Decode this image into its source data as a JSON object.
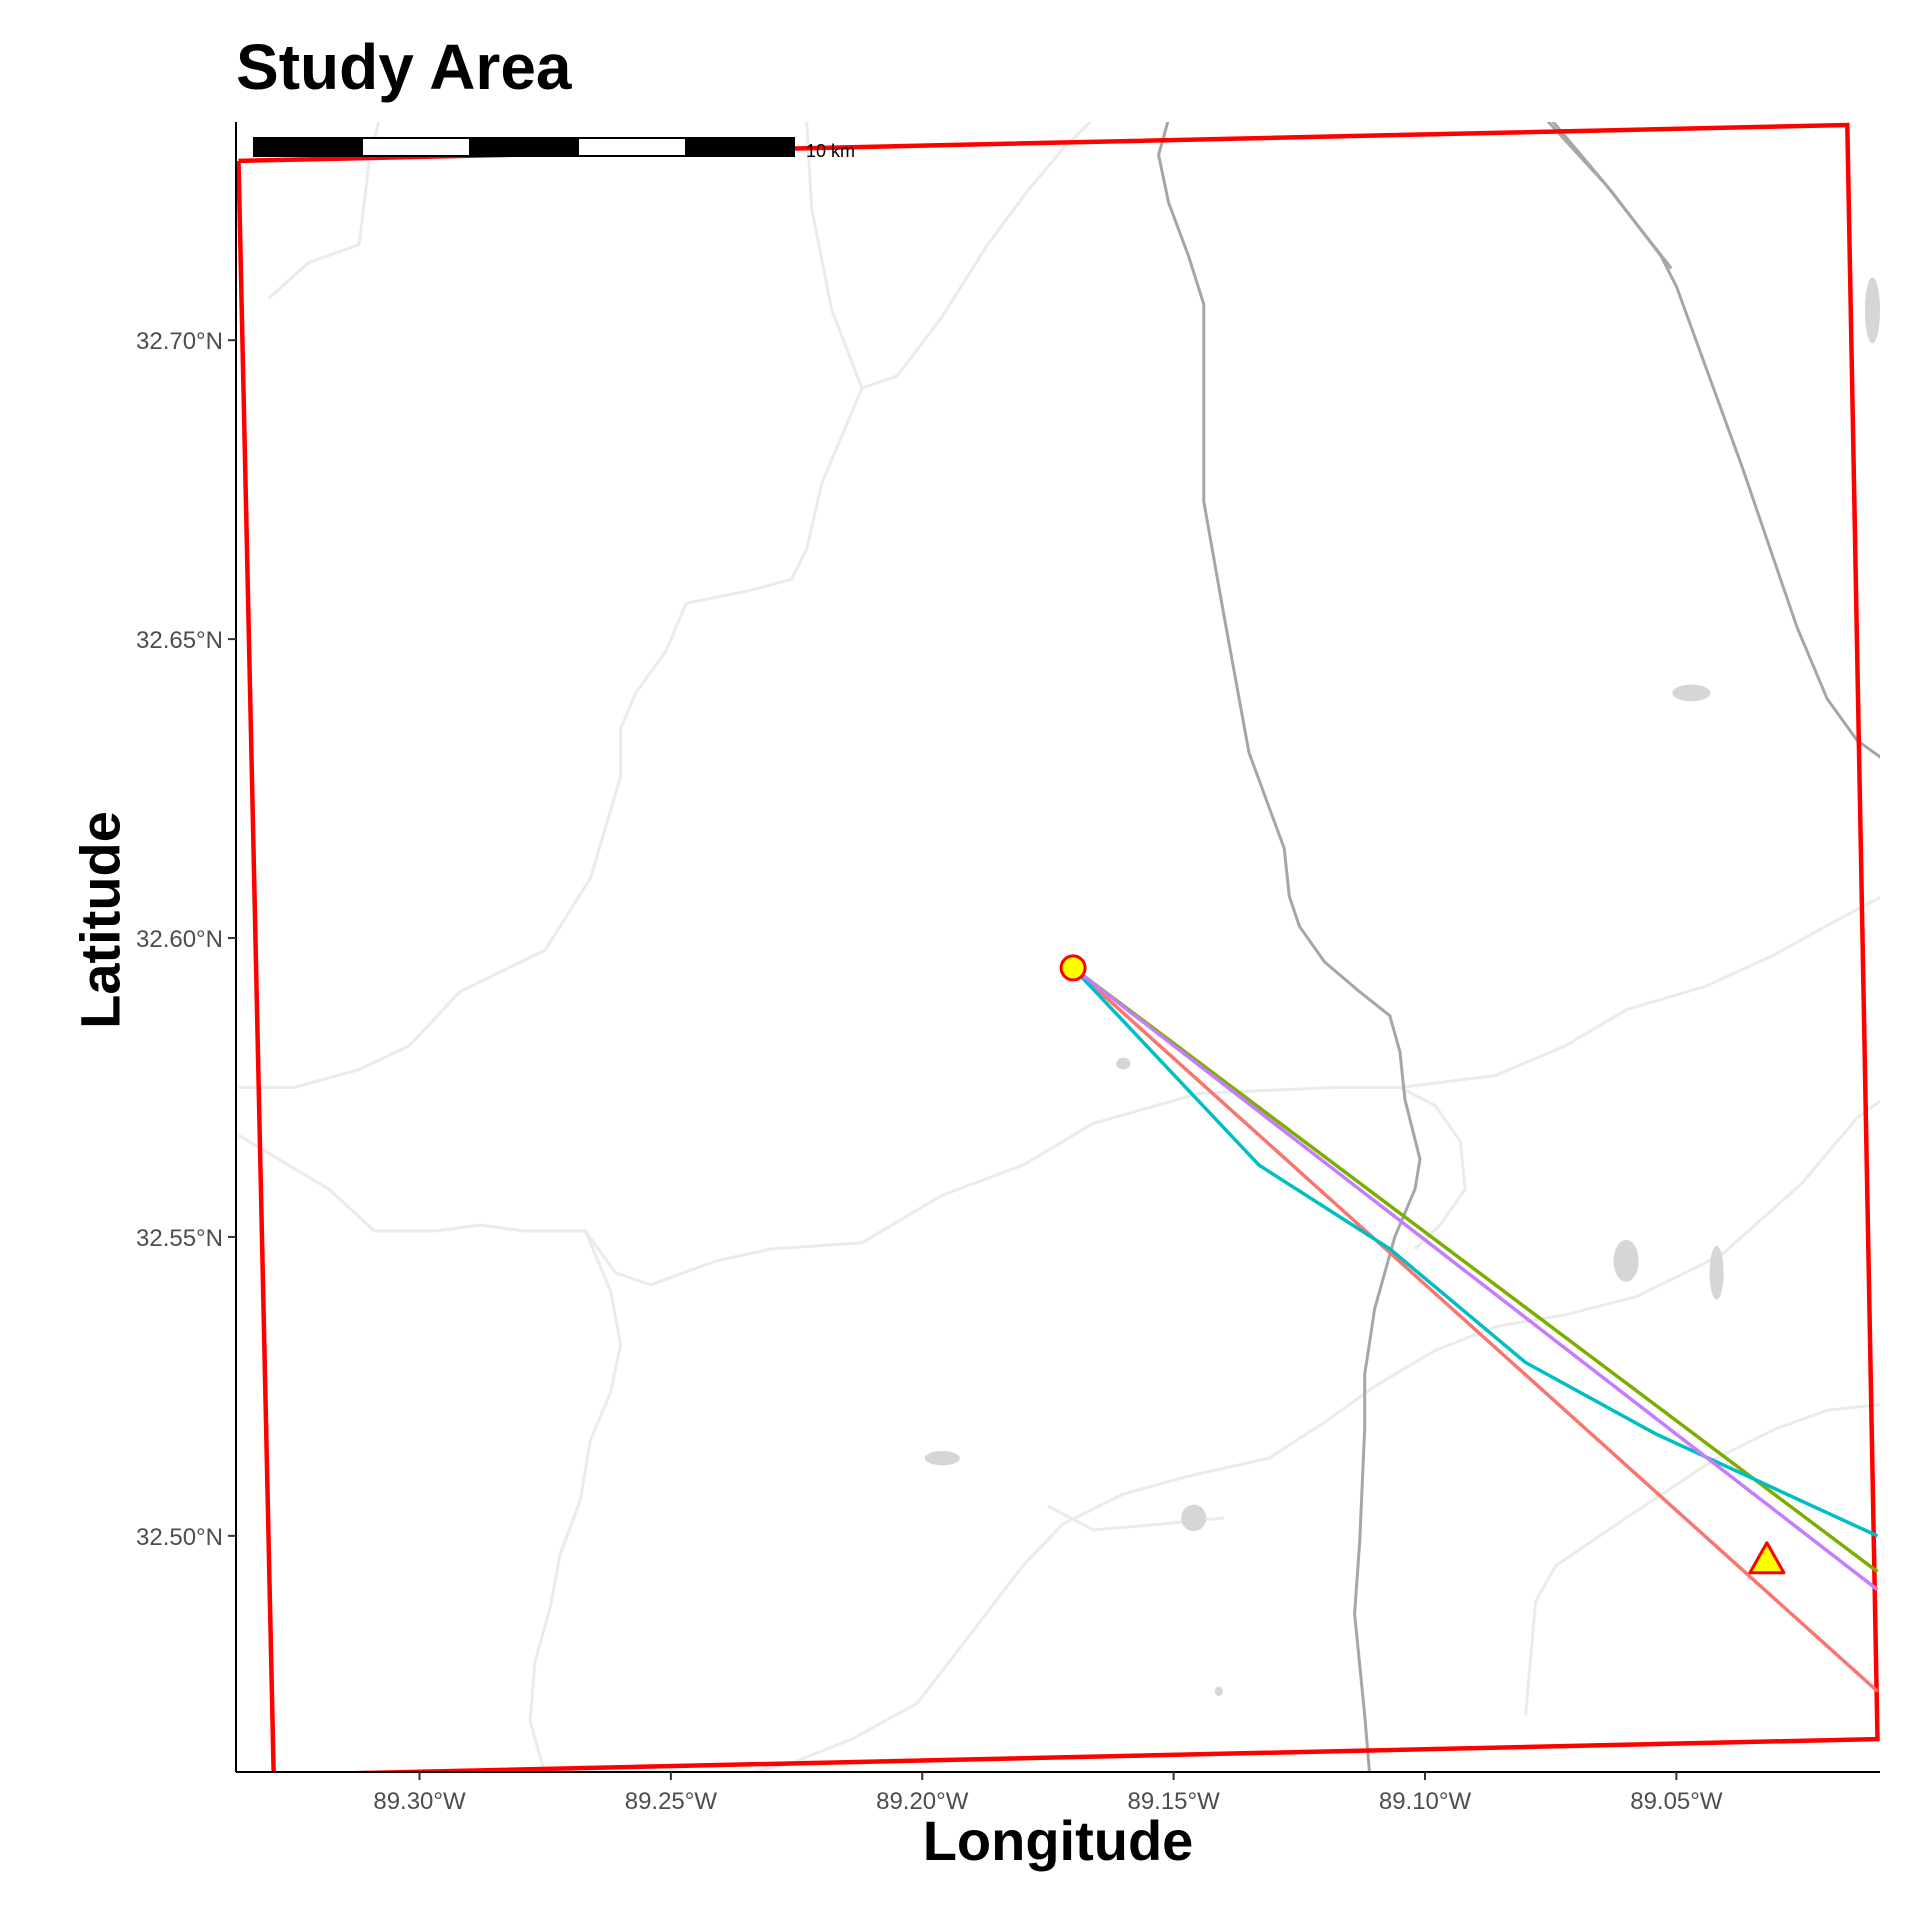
{
  "title": "Study Area",
  "map": {
    "xlabel": "Longitude",
    "ylabel": "Latitude",
    "lon_range": [
      -89.3365,
      -89.0095
    ],
    "lat_range": [
      32.4605,
      32.7365
    ],
    "x_ticks": [
      {
        "value": -89.3,
        "label": "89.30°W"
      },
      {
        "value": -89.25,
        "label": "89.25°W"
      },
      {
        "value": -89.2,
        "label": "89.20°W"
      },
      {
        "value": -89.15,
        "label": "89.15°W"
      },
      {
        "value": -89.1,
        "label": "89.10°W"
      },
      {
        "value": -89.05,
        "label": "89.05°W"
      }
    ],
    "y_ticks": [
      {
        "value": 32.5,
        "label": "32.50°N"
      },
      {
        "value": 32.55,
        "label": "32.55°N"
      },
      {
        "value": 32.6,
        "label": "32.60°N"
      },
      {
        "value": 32.65,
        "label": "32.65°N"
      },
      {
        "value": 32.7,
        "label": "32.70°N"
      }
    ],
    "scale_bar": {
      "label": "10 km",
      "segments": 5
    },
    "study_boundary": {
      "color": "#ff0000",
      "points": [
        [
          -89.336,
          32.73
        ],
        [
          -89.016,
          32.736
        ],
        [
          -89.01,
          32.466
        ],
        [
          -89.329,
          32.46
        ],
        [
          -89.336,
          32.73
        ]
      ]
    },
    "origin_point": {
      "lon": -89.17,
      "lat": 32.595,
      "shape": "circle",
      "fill": "#ffff00",
      "stroke": "#ff0000"
    },
    "target_point": {
      "lon": -89.032,
      "lat": 32.496,
      "shape": "triangle",
      "fill": "#ffff00",
      "stroke": "#ff0000"
    },
    "trajectories": [
      {
        "color": "#f8766d",
        "points": [
          [
            -89.17,
            32.595
          ],
          [
            -89.01,
            32.474
          ]
        ]
      },
      {
        "color": "#7cae00",
        "points": [
          [
            -89.17,
            32.595
          ],
          [
            -89.01,
            32.494
          ]
        ]
      },
      {
        "color": "#00bfc4",
        "points": [
          [
            -89.17,
            32.595
          ],
          [
            -89.133,
            32.562
          ],
          [
            -89.107,
            32.548
          ],
          [
            -89.08,
            32.529
          ],
          [
            -89.054,
            32.517
          ],
          [
            -89.01,
            32.5
          ]
        ]
      },
      {
        "color": "#c77cff",
        "points": [
          [
            -89.17,
            32.595
          ],
          [
            -89.01,
            32.491
          ]
        ]
      }
    ],
    "roads": [
      {
        "color": "#a6a6a6",
        "points": [
          [
            -89.151,
            32.737
          ],
          [
            -89.153,
            32.731
          ],
          [
            -89.151,
            32.723
          ],
          [
            -89.147,
            32.714
          ],
          [
            -89.144,
            32.706
          ],
          [
            -89.144,
            32.689
          ],
          [
            -89.144,
            32.673
          ],
          [
            -89.14,
            32.654
          ],
          [
            -89.135,
            32.631
          ],
          [
            -89.128,
            32.615
          ],
          [
            -89.127,
            32.607
          ],
          [
            -89.125,
            32.602
          ],
          [
            -89.12,
            32.596
          ],
          [
            -89.113,
            32.591
          ],
          [
            -89.107,
            32.587
          ],
          [
            -89.105,
            32.581
          ],
          [
            -89.104,
            32.573
          ],
          [
            -89.101,
            32.563
          ],
          [
            -89.102,
            32.558
          ],
          [
            -89.106,
            32.55
          ],
          [
            -89.11,
            32.538
          ],
          [
            -89.112,
            32.527
          ],
          [
            -89.112,
            32.518
          ],
          [
            -89.113,
            32.499
          ],
          [
            -89.114,
            32.487
          ],
          [
            -89.112,
            32.47
          ],
          [
            -89.111,
            32.46
          ]
        ]
      },
      {
        "color": "#a6a6a6",
        "points": [
          [
            -89.075,
            32.737
          ],
          [
            -89.063,
            32.725
          ],
          [
            -89.053,
            32.714
          ],
          [
            -89.05,
            32.709
          ],
          [
            -89.037,
            32.679
          ],
          [
            -89.026,
            32.652
          ],
          [
            -89.02,
            32.64
          ],
          [
            -89.014,
            32.633
          ],
          [
            -89.009,
            32.63
          ]
        ]
      },
      {
        "color": "#a6a6a6",
        "points": [
          [
            -89.076,
            32.737
          ],
          [
            -89.064,
            32.726
          ],
          [
            -89.051,
            32.712
          ]
        ]
      }
    ],
    "minor_roads": [
      [
        [
          -89.33,
          32.707
        ],
        [
          -89.322,
          32.713
        ],
        [
          -89.312,
          32.716
        ],
        [
          -89.31,
          32.73
        ],
        [
          -89.308,
          32.737
        ]
      ],
      [
        [
          -89.223,
          32.737
        ],
        [
          -89.222,
          32.722
        ],
        [
          -89.218,
          32.705
        ],
        [
          -89.212,
          32.692
        ],
        [
          -89.205,
          32.694
        ],
        [
          -89.196,
          32.704
        ],
        [
          -89.187,
          32.716
        ],
        [
          -89.179,
          32.725
        ],
        [
          -89.172,
          32.732
        ],
        [
          -89.166,
          32.737
        ]
      ],
      [
        [
          -89.212,
          32.692
        ],
        [
          -89.22,
          32.676
        ],
        [
          -89.223,
          32.665
        ],
        [
          -89.226,
          32.66
        ],
        [
          -89.235,
          32.658
        ],
        [
          -89.247,
          32.656
        ],
        [
          -89.251,
          32.648
        ],
        [
          -89.257,
          32.641
        ],
        [
          -89.26,
          32.635
        ],
        [
          -89.26,
          32.627
        ],
        [
          -89.266,
          32.61
        ],
        [
          -89.275,
          32.598
        ],
        [
          -89.292,
          32.591
        ],
        [
          -89.302,
          32.582
        ],
        [
          -89.312,
          32.578
        ],
        [
          -89.325,
          32.575
        ],
        [
          -89.336,
          32.575
        ]
      ],
      [
        [
          -89.336,
          32.567
        ],
        [
          -89.326,
          32.562
        ],
        [
          -89.318,
          32.558
        ],
        [
          -89.309,
          32.551
        ],
        [
          -89.297,
          32.551
        ],
        [
          -89.288,
          32.552
        ],
        [
          -89.279,
          32.551
        ],
        [
          -89.267,
          32.551
        ],
        [
          -89.261,
          32.544
        ],
        [
          -89.254,
          32.542
        ],
        [
          -89.241,
          32.546
        ],
        [
          -89.23,
          32.548
        ],
        [
          -89.212,
          32.549
        ],
        [
          -89.196,
          32.557
        ],
        [
          -89.18,
          32.562
        ],
        [
          -89.166,
          32.569
        ],
        [
          -89.145,
          32.574
        ],
        [
          -89.118,
          32.575
        ],
        [
          -89.105,
          32.575
        ],
        [
          -89.086,
          32.577
        ],
        [
          -89.072,
          32.582
        ],
        [
          -89.06,
          32.588
        ],
        [
          -89.044,
          32.592
        ],
        [
          -89.031,
          32.597
        ],
        [
          -89.018,
          32.603
        ],
        [
          -89.009,
          32.607
        ]
      ],
      [
        [
          -89.267,
          32.551
        ],
        [
          -89.262,
          32.541
        ],
        [
          -89.26,
          32.532
        ],
        [
          -89.262,
          32.524
        ],
        [
          -89.266,
          32.516
        ],
        [
          -89.268,
          32.506
        ],
        [
          -89.272,
          32.497
        ],
        [
          -89.274,
          32.488
        ],
        [
          -89.277,
          32.479
        ],
        [
          -89.278,
          32.469
        ],
        [
          -89.275,
          32.46
        ]
      ],
      [
        [
          -89.236,
          32.46
        ],
        [
          -89.226,
          32.462
        ],
        [
          -89.214,
          32.466
        ],
        [
          -89.201,
          32.472
        ],
        [
          -89.19,
          32.484
        ],
        [
          -89.18,
          32.495
        ],
        [
          -89.172,
          32.502
        ],
        [
          -89.16,
          32.507
        ],
        [
          -89.147,
          32.51
        ],
        [
          -89.131,
          32.513
        ],
        [
          -89.12,
          32.519
        ],
        [
          -89.11,
          32.525
        ],
        [
          -89.098,
          32.531
        ],
        [
          -89.086,
          32.535
        ],
        [
          -89.072,
          32.537
        ],
        [
          -89.058,
          32.54
        ],
        [
          -89.041,
          32.547
        ],
        [
          -89.025,
          32.559
        ],
        [
          -89.014,
          32.57
        ],
        [
          -89.009,
          32.573
        ]
      ],
      [
        [
          -89.175,
          32.505
        ],
        [
          -89.166,
          32.501
        ],
        [
          -89.152,
          32.502
        ],
        [
          -89.14,
          32.503
        ]
      ],
      [
        [
          -89.08,
          32.47
        ],
        [
          -89.078,
          32.489
        ],
        [
          -89.074,
          32.495
        ],
        [
          -89.06,
          32.503
        ],
        [
          -89.042,
          32.513
        ],
        [
          -89.03,
          32.518
        ],
        [
          -89.02,
          32.521
        ],
        [
          -89.009,
          32.522
        ]
      ],
      [
        [
          -89.105,
          32.575
        ],
        [
          -89.098,
          32.572
        ],
        [
          -89.093,
          32.566
        ],
        [
          -89.092,
          32.558
        ],
        [
          -89.097,
          32.552
        ],
        [
          -89.102,
          32.548
        ]
      ]
    ],
    "water": [
      {
        "lon": -89.047,
        "lat": 32.641,
        "rx": 0.0038,
        "ry": 0.0014
      },
      {
        "lon": -89.06,
        "lat": 32.546,
        "rx": 0.0025,
        "ry": 0.0035
      },
      {
        "lon": -89.042,
        "lat": 32.544,
        "rx": 0.0014,
        "ry": 0.0045
      },
      {
        "lon": -89.011,
        "lat": 32.705,
        "rx": 0.0015,
        "ry": 0.0055
      },
      {
        "lon": -89.146,
        "lat": 32.503,
        "rx": 0.0025,
        "ry": 0.0022
      },
      {
        "lon": -89.196,
        "lat": 32.513,
        "rx": 0.0035,
        "ry": 0.0012
      },
      {
        "lon": -89.16,
        "lat": 32.579,
        "rx": 0.0014,
        "ry": 0.001
      },
      {
        "lon": -89.141,
        "lat": 32.474,
        "rx": 0.0008,
        "ry": 0.0008
      }
    ]
  }
}
